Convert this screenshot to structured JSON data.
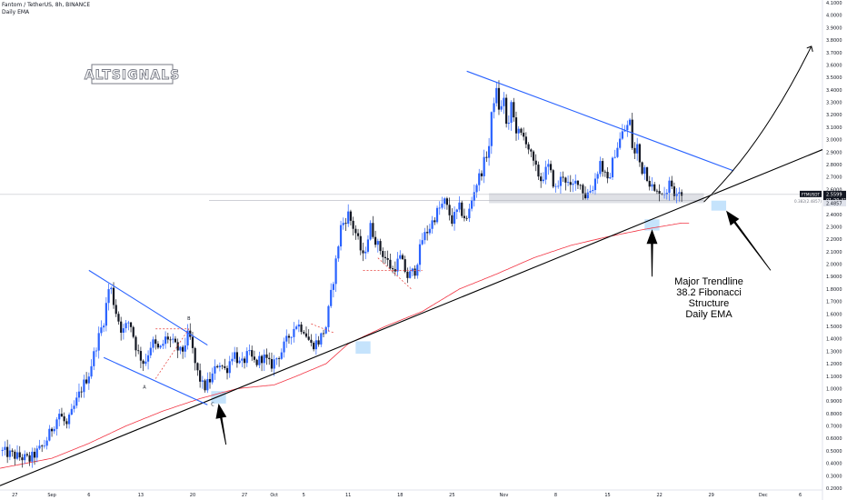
{
  "header": {
    "title": "Fantom / TetherUS, 8h, BINANCE",
    "indicator": "Daily EMA"
  },
  "watermark": "ALTSIGNALS",
  "annotation": {
    "lines": [
      "Major Trendline",
      "38.2 Fibonacci",
      "Structure",
      "Daily EMA"
    ]
  },
  "pattern_labels": {
    "a": "A",
    "b": "B",
    "c": "C"
  },
  "price_tag": {
    "symbol": "FTMUSDT",
    "price": 2.5599,
    "price_text": "2.5599",
    "timer": "01:20:41",
    "fib_label": "0.382(2.4857)"
  },
  "colors": {
    "up": "#2962ff",
    "down": "#131722",
    "ema": "#f23645",
    "trendline": "#000000",
    "channel": "#2962ff",
    "zone": "#d1d4dc",
    "highlight": "#bbdefb",
    "dashed": "#e53935"
  },
  "chart_data": {
    "type": "candlestick",
    "y_axis": {
      "min": 0.2,
      "max": 4.1,
      "step": 0.1,
      "decimals": 4,
      "position": "right"
    },
    "x_axis": {
      "labels": [
        {
          "label": "27",
          "t": 0
        },
        {
          "label": "Sep",
          "t": 5
        },
        {
          "label": "6",
          "t": 10
        },
        {
          "label": "13",
          "t": 17
        },
        {
          "label": "20",
          "t": 24
        },
        {
          "label": "27",
          "t": 31
        },
        {
          "label": "Oct",
          "t": 35
        },
        {
          "label": "5",
          "t": 39
        },
        {
          "label": "11",
          "t": 45
        },
        {
          "label": "18",
          "t": 52
        },
        {
          "label": "25",
          "t": 59
        },
        {
          "label": "Nov",
          "t": 66
        },
        {
          "label": "8",
          "t": 73
        },
        {
          "label": "15",
          "t": 80
        },
        {
          "label": "22",
          "t": 87
        },
        {
          "label": "29",
          "t": 94
        },
        {
          "label": "Dec",
          "t": 101
        },
        {
          "label": "6",
          "t": 106
        }
      ],
      "t_range": [
        -2,
        109
      ]
    },
    "close_keypoints": [
      [
        -2,
        0.5
      ],
      [
        0,
        0.46
      ],
      [
        2,
        0.43
      ],
      [
        4,
        0.55
      ],
      [
        5,
        0.68
      ],
      [
        6,
        0.8
      ],
      [
        7,
        0.7
      ],
      [
        8,
        0.85
      ],
      [
        9,
        1.0
      ],
      [
        10,
        1.12
      ],
      [
        11,
        1.35
      ],
      [
        12,
        1.55
      ],
      [
        12.8,
        1.85
      ],
      [
        13.5,
        1.65
      ],
      [
        14.5,
        1.45
      ],
      [
        15.5,
        1.55
      ],
      [
        16.5,
        1.3
      ],
      [
        17.5,
        1.2
      ],
      [
        18.5,
        1.38
      ],
      [
        19.5,
        1.3
      ],
      [
        20.5,
        1.42
      ],
      [
        21.5,
        1.35
      ],
      [
        22.5,
        1.28
      ],
      [
        23.5,
        1.45
      ],
      [
        24.5,
        1.15
      ],
      [
        25.5,
        1.0
      ],
      [
        26.5,
        1.08
      ],
      [
        27.5,
        1.22
      ],
      [
        28.5,
        1.14
      ],
      [
        29.5,
        1.3
      ],
      [
        30.5,
        1.18
      ],
      [
        31.5,
        1.28
      ],
      [
        32.5,
        1.2
      ],
      [
        33.5,
        1.26
      ],
      [
        34.5,
        1.18
      ],
      [
        36,
        1.3
      ],
      [
        37,
        1.42
      ],
      [
        38,
        1.52
      ],
      [
        39,
        1.48
      ],
      [
        40,
        1.35
      ],
      [
        41,
        1.38
      ],
      [
        42,
        1.5
      ],
      [
        43,
        1.88
      ],
      [
        44,
        2.3
      ],
      [
        45,
        2.4
      ],
      [
        46,
        2.25
      ],
      [
        47,
        2.05
      ],
      [
        48,
        2.3
      ],
      [
        49,
        2.15
      ],
      [
        50,
        2.05
      ],
      [
        51,
        1.95
      ],
      [
        52,
        2.05
      ],
      [
        53,
        1.9
      ],
      [
        54,
        1.95
      ],
      [
        55,
        2.2
      ],
      [
        56,
        2.3
      ],
      [
        57,
        2.42
      ],
      [
        58,
        2.5
      ],
      [
        59,
        2.35
      ],
      [
        60,
        2.45
      ],
      [
        61,
        2.35
      ],
      [
        62,
        2.6
      ],
      [
        63,
        2.75
      ],
      [
        64,
        2.95
      ],
      [
        64.5,
        3.3
      ],
      [
        65,
        3.38
      ],
      [
        65.5,
        3.2
      ],
      [
        66,
        3.35
      ],
      [
        66.5,
        3.0
      ],
      [
        67,
        3.3
      ],
      [
        67.5,
        3.1
      ],
      [
        68,
        3.05
      ],
      [
        69,
        3.0
      ],
      [
        70,
        2.8
      ],
      [
        71,
        2.68
      ],
      [
        72,
        2.78
      ],
      [
        73,
        2.6
      ],
      [
        74,
        2.72
      ],
      [
        75,
        2.6
      ],
      [
        76,
        2.68
      ],
      [
        77,
        2.55
      ],
      [
        78,
        2.62
      ],
      [
        79,
        2.82
      ],
      [
        80,
        2.65
      ],
      [
        81,
        2.9
      ],
      [
        82,
        3.05
      ],
      [
        83,
        3.14
      ],
      [
        83.5,
        2.85
      ],
      [
        84,
        2.95
      ],
      [
        84.5,
        2.75
      ],
      [
        85,
        2.78
      ],
      [
        85.5,
        2.68
      ],
      [
        86,
        2.62
      ],
      [
        86.5,
        2.55
      ],
      [
        87,
        2.6
      ],
      [
        87.5,
        2.57
      ],
      [
        88,
        2.6
      ],
      [
        88.5,
        2.66
      ],
      [
        89,
        2.58
      ],
      [
        89.5,
        2.62
      ],
      [
        90,
        2.56
      ]
    ],
    "ema_keypoints": [
      [
        -2,
        0.36
      ],
      [
        5,
        0.44
      ],
      [
        10,
        0.56
      ],
      [
        15,
        0.7
      ],
      [
        20,
        0.82
      ],
      [
        25,
        0.92
      ],
      [
        30,
        1.0
      ],
      [
        35,
        1.03
      ],
      [
        38,
        1.1
      ],
      [
        42,
        1.2
      ],
      [
        45,
        1.36
      ],
      [
        50,
        1.5
      ],
      [
        55,
        1.62
      ],
      [
        60,
        1.8
      ],
      [
        65,
        1.92
      ],
      [
        70,
        2.05
      ],
      [
        75,
        2.15
      ],
      [
        80,
        2.22
      ],
      [
        85,
        2.28
      ],
      [
        90,
        2.33
      ]
    ],
    "trendline": [
      [
        -2,
        0.22
      ],
      [
        109,
        2.92
      ]
    ],
    "channel_1_upper": [
      [
        10,
        1.95
      ],
      [
        26,
        1.35
      ]
    ],
    "channel_1_lower": [
      [
        12,
        1.25
      ],
      [
        26,
        0.87
      ]
    ],
    "channel_2_upper": [
      [
        61,
        3.55
      ],
      [
        97,
        2.75
      ]
    ],
    "dashed_lines": [
      [
        [
          19,
          1.48
        ],
        [
          23.5,
          1.48
        ]
      ],
      [
        [
          19,
          1.08
        ],
        [
          23.5,
          1.48
        ]
      ],
      [
        [
          49,
          2.05
        ],
        [
          53.5,
          1.8
        ]
      ],
      [
        [
          47,
          1.95
        ],
        [
          55,
          1.95
        ]
      ],
      [
        [
          40,
          1.52
        ],
        [
          43,
          1.45
        ]
      ]
    ],
    "zone_rect": [
      [
        64,
        2.57
      ],
      [
        93,
        2.49
      ]
    ],
    "highlight_rects": [
      [
        [
          85,
          2.36
        ],
        [
          87,
          2.27
        ]
      ],
      [
        [
          94,
          2.51
        ],
        [
          96,
          2.43
        ]
      ],
      [
        [
          46,
          1.38
        ],
        [
          48,
          1.28
        ]
      ],
      [
        [
          26.5,
          0.98
        ],
        [
          28.5,
          0.88
        ]
      ]
    ],
    "projection_curve": [
      [
        93,
        2.5
      ],
      [
        100,
        2.9
      ],
      [
        105,
        3.45
      ],
      [
        107.5,
        3.75
      ]
    ],
    "arrows": [
      {
        "tail": [
          28.5,
          0.55
        ],
        "head": [
          27.5,
          0.88
        ]
      },
      {
        "tail": [
          86,
          1.9
        ],
        "head": [
          86,
          2.28
        ]
      },
      {
        "tail": [
          102,
          1.95
        ],
        "head": [
          96,
          2.43
        ]
      }
    ],
    "current_price": 2.5599,
    "fib_level": 2.4857,
    "grid": false,
    "legend": "none"
  }
}
